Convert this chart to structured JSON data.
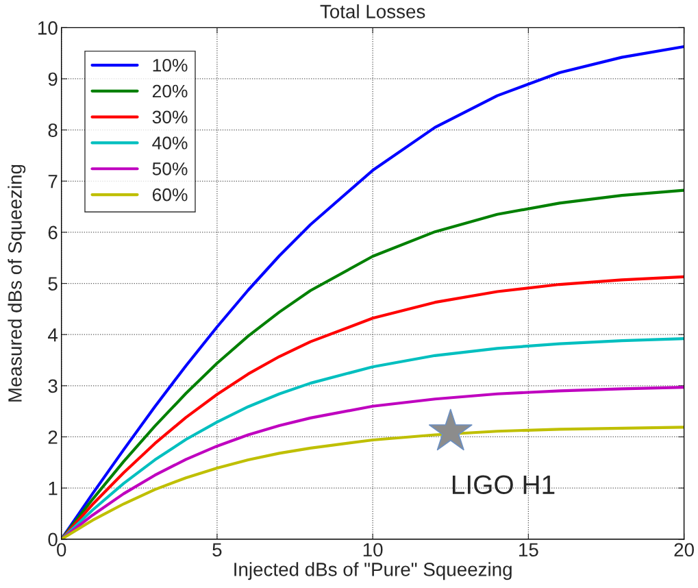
{
  "chart_data": {
    "type": "line",
    "title": "Total Losses",
    "xlabel": "Injected dBs of \"Pure\" Squeezing",
    "ylabel": "Measured dBs of Squeezing",
    "xlim": [
      0,
      20
    ],
    "ylim": [
      0,
      10
    ],
    "xticks": [
      0,
      5,
      10,
      15,
      20
    ],
    "yticks": [
      0,
      1,
      2,
      3,
      4,
      5,
      6,
      7,
      8,
      9,
      10
    ],
    "grid": true,
    "legend": "top left",
    "marker": "none",
    "line_style": "solid",
    "x": [
      0,
      1,
      2,
      3,
      4,
      5,
      6,
      7,
      8,
      10,
      12,
      14,
      16,
      18,
      20
    ],
    "series": [
      {
        "name": "10%",
        "color": "#0000ff",
        "values": [
          0,
          0.89,
          1.75,
          2.59,
          3.39,
          4.15,
          4.87,
          5.54,
          6.15,
          7.21,
          8.05,
          8.67,
          9.12,
          9.42,
          9.63
        ]
      },
      {
        "name": "20%",
        "color": "#008000",
        "values": [
          0,
          0.78,
          1.52,
          2.21,
          2.85,
          3.44,
          3.97,
          4.44,
          4.86,
          5.53,
          6.01,
          6.35,
          6.57,
          6.72,
          6.82
        ]
      },
      {
        "name": "30%",
        "color": "#ff0000",
        "values": [
          0,
          0.68,
          1.3,
          1.87,
          2.38,
          2.83,
          3.23,
          3.57,
          3.86,
          4.32,
          4.63,
          4.84,
          4.98,
          5.07,
          5.13
        ]
      },
      {
        "name": "40%",
        "color": "#00bfbf",
        "values": [
          0,
          0.57,
          1.09,
          1.55,
          1.95,
          2.29,
          2.59,
          2.84,
          3.05,
          3.37,
          3.59,
          3.73,
          3.82,
          3.88,
          3.92
        ]
      },
      {
        "name": "50%",
        "color": "#bf00bf",
        "values": [
          0,
          0.47,
          0.89,
          1.25,
          1.56,
          1.82,
          2.04,
          2.22,
          2.37,
          2.6,
          2.74,
          2.84,
          2.9,
          2.94,
          2.97
        ]
      },
      {
        "name": "60%",
        "color": "#bfbf00",
        "values": [
          0,
          0.37,
          0.69,
          0.97,
          1.2,
          1.39,
          1.55,
          1.68,
          1.78,
          1.94,
          2.04,
          2.11,
          2.15,
          2.17,
          2.19
        ]
      },
      {
        "type": "scatter",
        "marker": "star",
        "color": "#8c8c8c",
        "x": [
          12.5
        ],
        "values": [
          2.1
        ]
      }
    ],
    "annotations": [
      {
        "text": "LIGO H1",
        "x": 12.5,
        "y": 2.1
      }
    ]
  }
}
